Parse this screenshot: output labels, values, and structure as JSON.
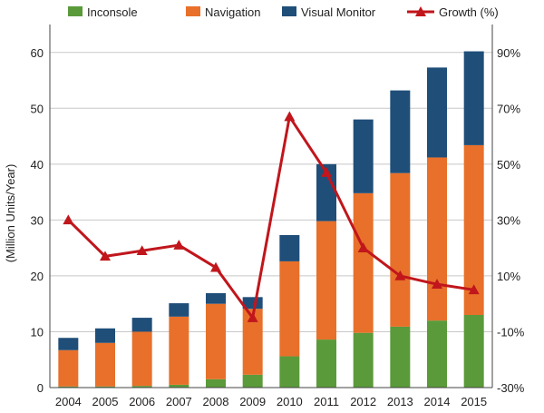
{
  "chart_data": {
    "type": "bar",
    "stacked": true,
    "categories": [
      "2004",
      "2005",
      "2006",
      "2007",
      "2008",
      "2009",
      "2010",
      "2011",
      "2012",
      "2013",
      "2014",
      "2015"
    ],
    "series": [
      {
        "name": "Inconsole",
        "type": "bar",
        "axis": "left",
        "color": "#5a9a3a",
        "values": [
          0.2,
          0.2,
          0.3,
          0.5,
          1.5,
          2.3,
          5.6,
          8.6,
          9.8,
          10.9,
          12.0,
          13.0
        ]
      },
      {
        "name": "Navigation",
        "type": "bar",
        "axis": "left",
        "color": "#e8702a",
        "values": [
          6.5,
          7.8,
          9.7,
          12.2,
          13.5,
          11.8,
          17.0,
          21.2,
          25.0,
          27.5,
          29.2,
          30.4
        ]
      },
      {
        "name": "Visual Monitor",
        "type": "bar",
        "axis": "left",
        "color": "#1f4e79",
        "values": [
          2.2,
          2.6,
          2.5,
          2.4,
          1.9,
          2.1,
          4.7,
          10.2,
          13.2,
          14.8,
          16.1,
          16.8
        ]
      },
      {
        "name": "Growth (%)",
        "type": "line",
        "axis": "right",
        "color": "#c0161c",
        "values": [
          30,
          17,
          19,
          21,
          13,
          -5,
          67,
          47,
          20,
          10,
          7,
          5
        ]
      }
    ],
    "ylabel": "(Million Units/Year)",
    "ylim": [
      0,
      65
    ],
    "yticks": [
      "0",
      "10",
      "20",
      "30",
      "40",
      "50",
      "60"
    ],
    "y2lim": [
      -30,
      100
    ],
    "y2ticks": [
      "-30%",
      "-10%",
      "10%",
      "30%",
      "50%",
      "70%",
      "90%"
    ],
    "grid": true,
    "legend_position": "top"
  },
  "colors": {
    "grid": "#c8c8c8",
    "axis": "#444444"
  }
}
